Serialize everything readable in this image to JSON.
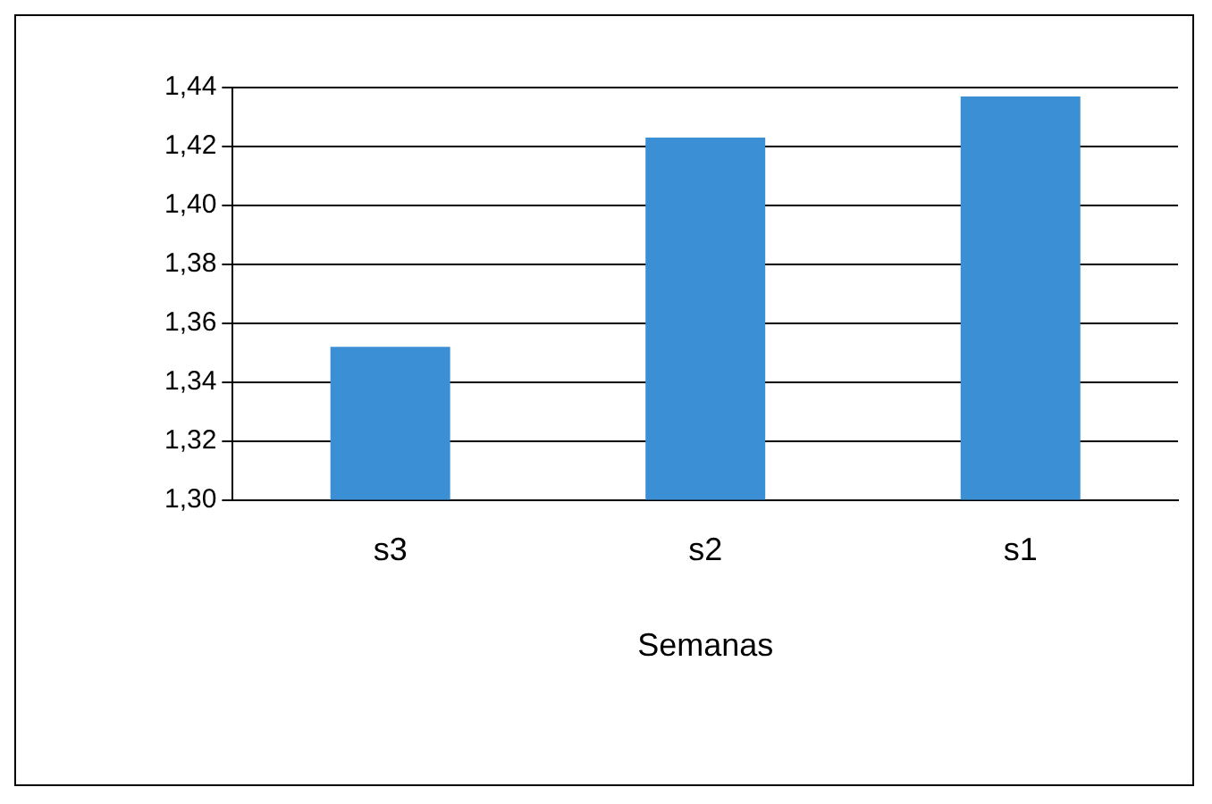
{
  "chart_data": {
    "type": "bar",
    "xlabel": "Semanas",
    "categories": [
      "s3",
      "s2",
      "s1"
    ],
    "series": [
      {
        "color": "#3b8fd4",
        "values": [
          1.352,
          1.423,
          1.437
        ]
      }
    ],
    "ylim": [
      1.3,
      1.44
    ],
    "yticks": [
      {
        "value": 1.3,
        "label": "1,30"
      },
      {
        "value": 1.32,
        "label": "1,32"
      },
      {
        "value": 1.34,
        "label": "1,34"
      },
      {
        "value": 1.36,
        "label": "1,36"
      },
      {
        "value": 1.38,
        "label": "1,38"
      },
      {
        "value": 1.4,
        "label": "1,40"
      },
      {
        "value": 1.42,
        "label": "1,42"
      },
      {
        "value": 1.44,
        "label": "1,44"
      }
    ],
    "grid": "y",
    "legend": false
  }
}
